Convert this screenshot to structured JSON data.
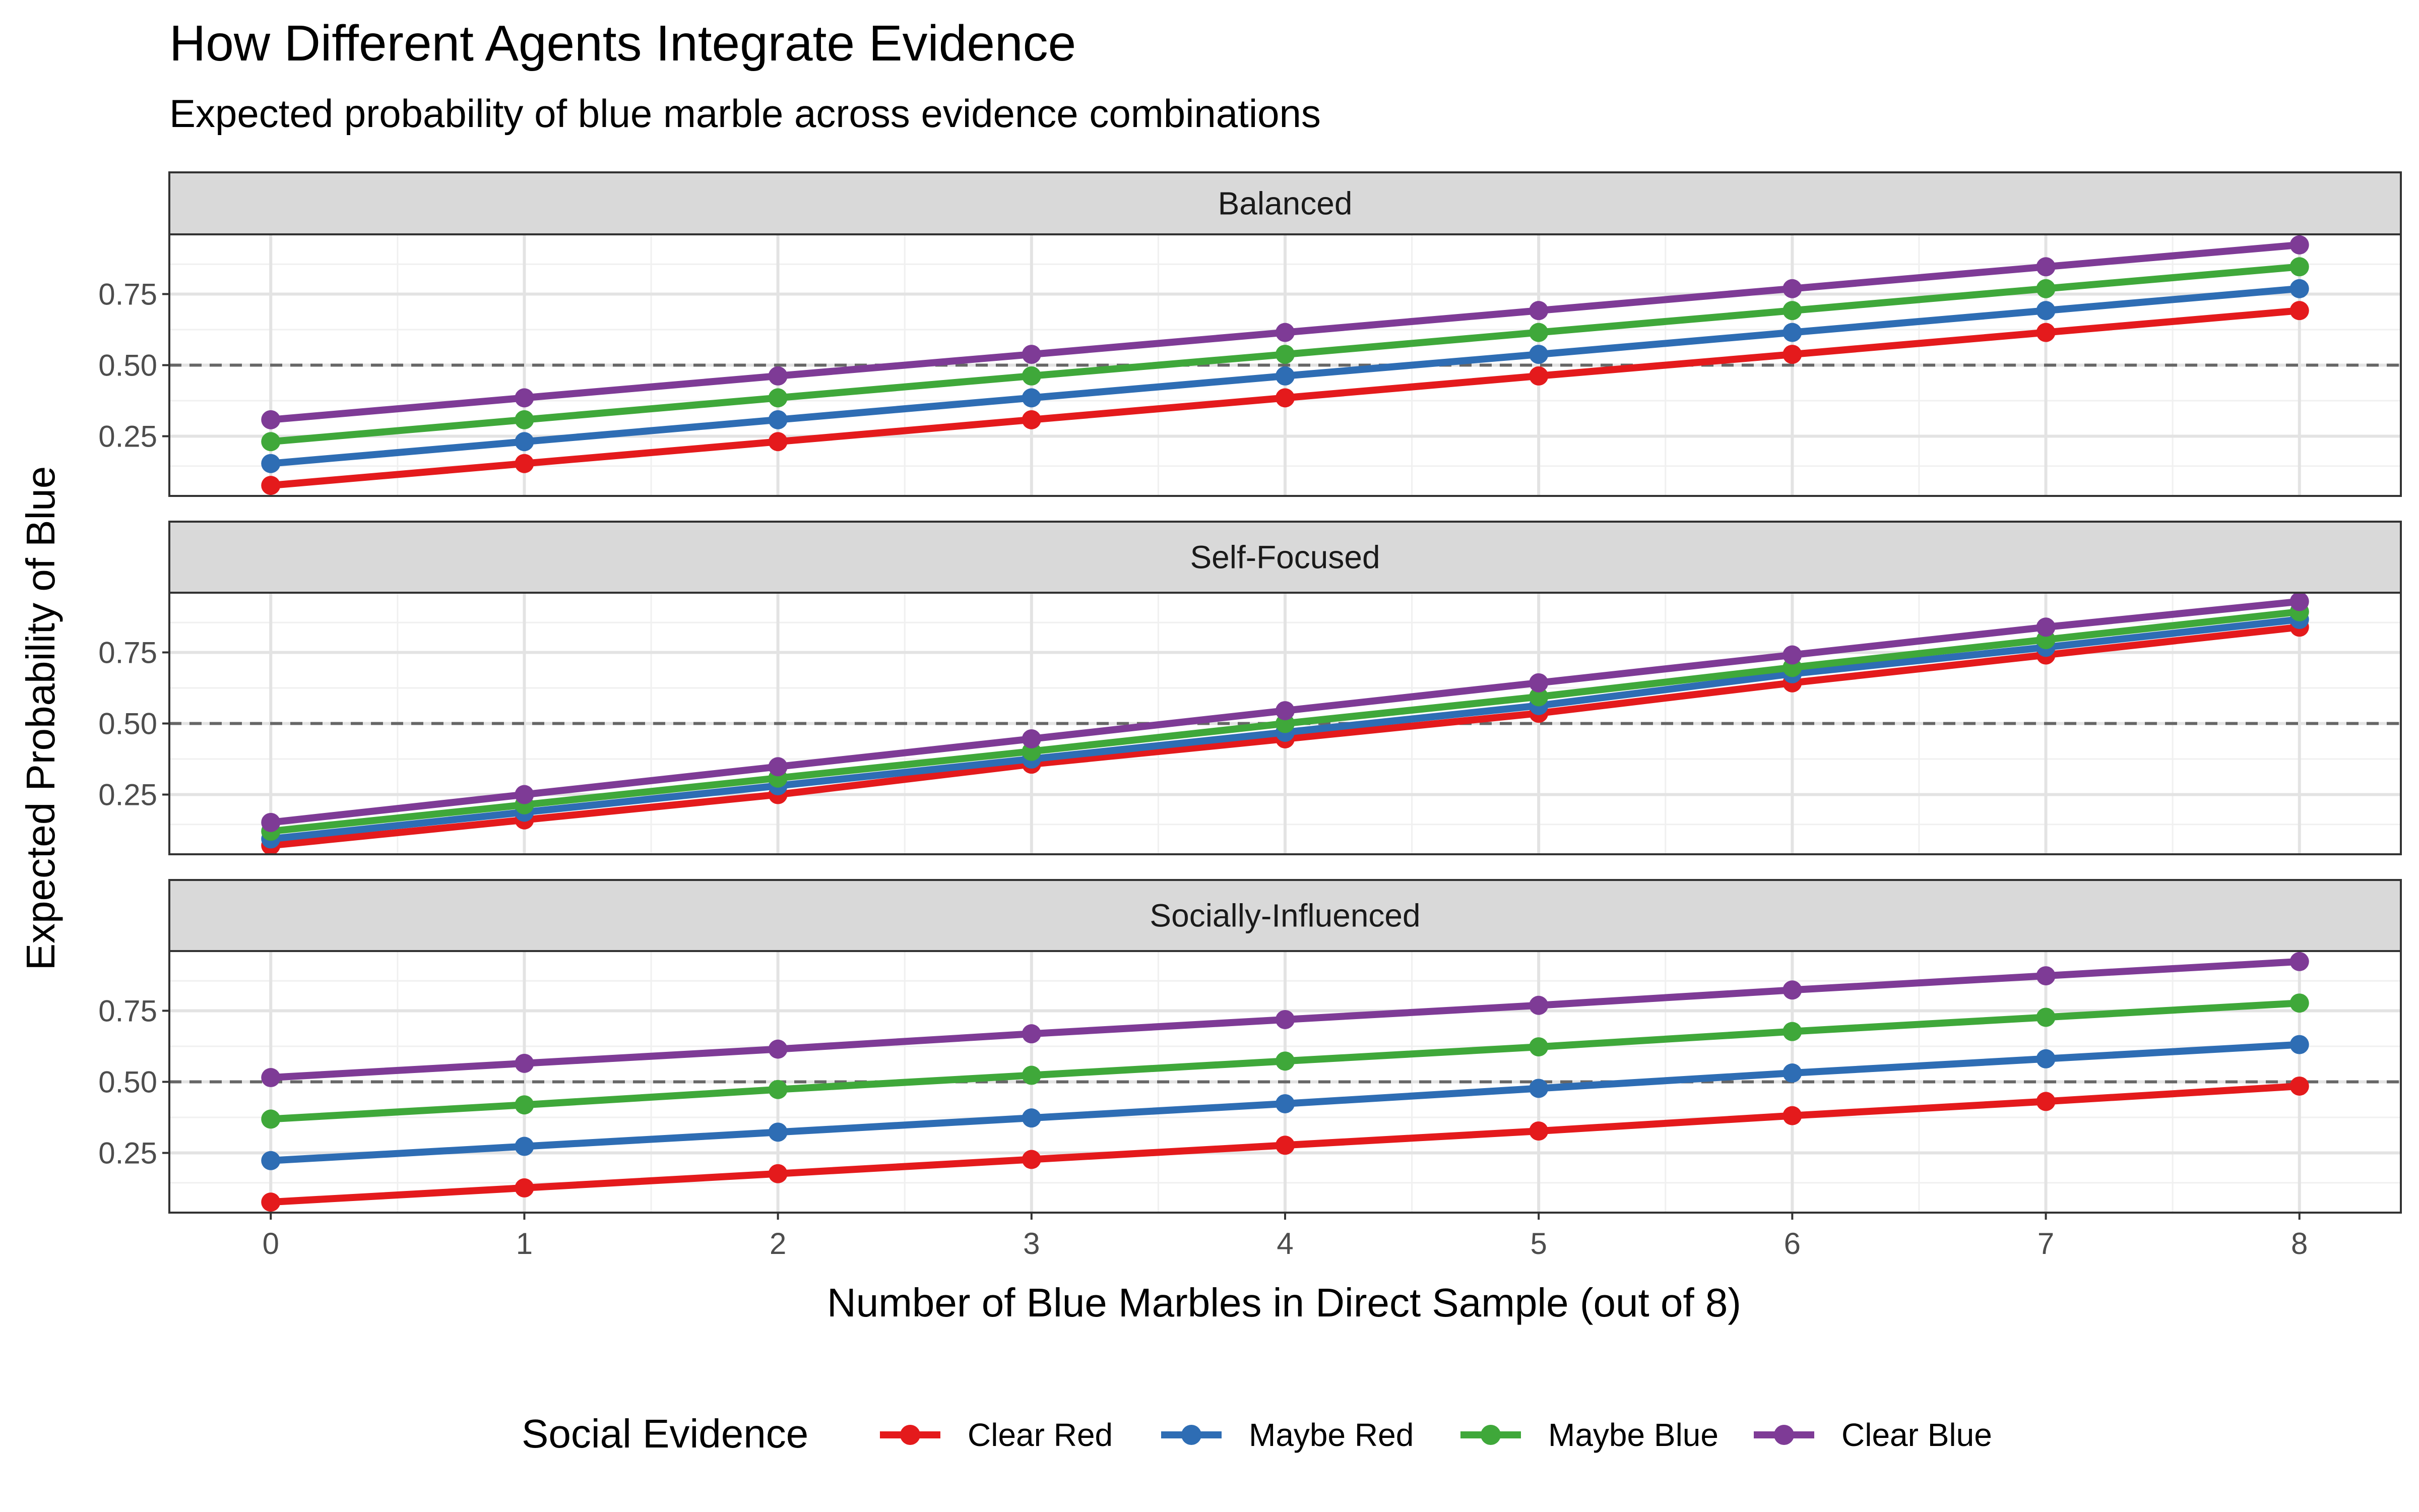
{
  "chart_data": {
    "type": "line",
    "title": "How Different Agents Integrate Evidence",
    "subtitle": "Expected probability of blue marble across evidence combinations",
    "xlabel": "Number of Blue Marbles in Direct Sample (out of 8)",
    "ylabel": "Expected Probability of Blue",
    "x": [
      0,
      1,
      2,
      3,
      4,
      5,
      6,
      7,
      8
    ],
    "x_ticks": [
      "0",
      "1",
      "2",
      "3",
      "4",
      "5",
      "6",
      "7",
      "8"
    ],
    "xlim": [
      -0.4,
      8.4
    ],
    "ylim": [
      0.04,
      0.96
    ],
    "y_ticks": [
      "0.25",
      "0.50",
      "0.75"
    ],
    "y_tick_values": [
      0.25,
      0.5,
      0.75
    ],
    "reference_line": 0.5,
    "grid": true,
    "legend": {
      "title": "Social Evidence",
      "position": "bottom",
      "entries": [
        "Clear Red",
        "Maybe Red",
        "Maybe Blue",
        "Clear Blue"
      ]
    },
    "colors": {
      "Clear Red": "#e41a1c",
      "Maybe Red": "#2e6db4",
      "Maybe Blue": "#3fa83a",
      "Clear Blue": "#7e3b96"
    },
    "panels": [
      {
        "label": "Balanced",
        "series": [
          {
            "name": "Clear Red",
            "values": [
              0.077,
              0.154,
              0.231,
              0.308,
              0.385,
              0.462,
              0.538,
              0.615,
              0.692
            ]
          },
          {
            "name": "Maybe Red",
            "values": [
              0.154,
              0.231,
              0.308,
              0.385,
              0.462,
              0.538,
              0.615,
              0.692,
              0.769
            ]
          },
          {
            "name": "Maybe Blue",
            "values": [
              0.231,
              0.308,
              0.385,
              0.462,
              0.538,
              0.615,
              0.692,
              0.769,
              0.846
            ]
          },
          {
            "name": "Clear Blue",
            "values": [
              0.308,
              0.385,
              0.462,
              0.538,
              0.615,
              0.692,
              0.769,
              0.846,
              0.923
            ]
          }
        ]
      },
      {
        "label": "Self-Focused",
        "series": [
          {
            "name": "Clear Red",
            "values": [
              0.071,
              0.161,
              0.25,
              0.357,
              0.446,
              0.536,
              0.643,
              0.741,
              0.839
            ]
          },
          {
            "name": "Maybe Red",
            "values": [
              0.094,
              0.188,
              0.281,
              0.375,
              0.469,
              0.563,
              0.675,
              0.768,
              0.866
            ]
          },
          {
            "name": "Maybe Blue",
            "values": [
              0.121,
              0.214,
              0.308,
              0.402,
              0.5,
              0.594,
              0.697,
              0.795,
              0.893
            ]
          },
          {
            "name": "Clear Blue",
            "values": [
              0.152,
              0.25,
              0.348,
              0.446,
              0.545,
              0.643,
              0.741,
              0.839,
              0.929
            ]
          }
        ]
      },
      {
        "label": "Socially-Influenced",
        "series": [
          {
            "name": "Clear Red",
            "values": [
              0.077,
              0.127,
              0.177,
              0.227,
              0.277,
              0.327,
              0.381,
              0.431,
              0.485
            ]
          },
          {
            "name": "Maybe Red",
            "values": [
              0.223,
              0.273,
              0.323,
              0.373,
              0.423,
              0.477,
              0.531,
              0.581,
              0.631
            ]
          },
          {
            "name": "Maybe Blue",
            "values": [
              0.369,
              0.419,
              0.473,
              0.523,
              0.573,
              0.623,
              0.677,
              0.727,
              0.777
            ]
          },
          {
            "name": "Clear Blue",
            "values": [
              0.515,
              0.565,
              0.615,
              0.669,
              0.719,
              0.769,
              0.823,
              0.873,
              0.923
            ]
          }
        ]
      }
    ]
  }
}
